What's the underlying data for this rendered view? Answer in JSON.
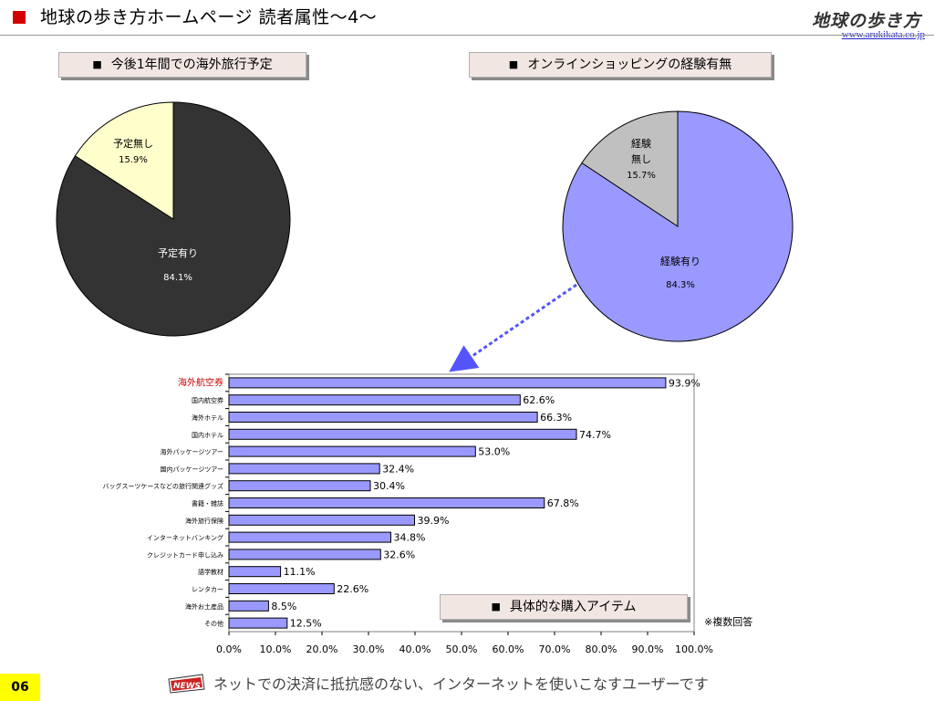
{
  "header": {
    "title": "地球の歩き方ホームページ 読者属性〜4〜",
    "logo_text": "地球の歩き方",
    "url": "www.arukikata.co.jp"
  },
  "sections": {
    "travel_plan_title": "今後1年間での海外旅行予定",
    "online_shopping_title": "オンラインショッピングの経験有無",
    "purchase_items_title": "具体的な購入アイテム",
    "bullet": "■"
  },
  "note": "※複数回答",
  "footer": {
    "page_number": "06",
    "message": "ネットでの決済に抵抗感のない、インターネットを使いこなすユーザーです",
    "news_icon": "news-icon"
  },
  "colors": {
    "accent_red": "#d40000",
    "pie1_main": "#333333",
    "pie1_other": "#ffffcc",
    "pie2_main": "#9999ff",
    "pie2_other": "#c0c0c0",
    "bar_fill": "#9999ff",
    "highlight_label": "#cc0000",
    "page_badge": "#ffff00"
  },
  "chart_data": [
    {
      "type": "pie",
      "slices": [
        {
          "label": "予定有り",
          "value": 84.1,
          "display": "84.1%"
        },
        {
          "label": "予定無し",
          "value": 15.9,
          "display": "15.9%"
        }
      ]
    },
    {
      "type": "pie",
      "slices": [
        {
          "label": "経験有り",
          "value": 84.3,
          "display": "84.3%"
        },
        {
          "label": "経験無し",
          "value": 15.7,
          "display": "15.7%"
        }
      ]
    },
    {
      "type": "bar",
      "orientation": "horizontal",
      "categories": [
        "海外航空券",
        "国内航空券",
        "海外ホテル",
        "国内ホテル",
        "海外パッケージツアー",
        "国内パッケージツアー",
        "バッグスーツケースなどの旅行関連グッズ",
        "書籍・雑誌",
        "海外旅行保険",
        "インターネットバンキング",
        "クレジットカード申し込み",
        "語学教材",
        "レンタカー",
        "海外お土産品",
        "その他"
      ],
      "values": [
        93.9,
        62.6,
        66.3,
        74.7,
        53.0,
        32.4,
        30.4,
        67.8,
        39.9,
        34.8,
        32.6,
        11.1,
        22.6,
        8.5,
        12.5
      ],
      "value_labels": [
        "93.9%",
        "62.6%",
        "66.3%",
        "74.7%",
        "53.0%",
        "32.4%",
        "30.4%",
        "67.8%",
        "39.9%",
        "34.8%",
        "32.6%",
        "11.1%",
        "22.6%",
        "8.5%",
        "12.5%"
      ],
      "highlight_index": 0,
      "xlim": [
        0,
        100
      ],
      "xticks": [
        "0.0%",
        "10.0%",
        "20.0%",
        "30.0%",
        "40.0%",
        "50.0%",
        "60.0%",
        "70.0%",
        "80.0%",
        "90.0%",
        "100.0%"
      ],
      "grid": false
    }
  ]
}
